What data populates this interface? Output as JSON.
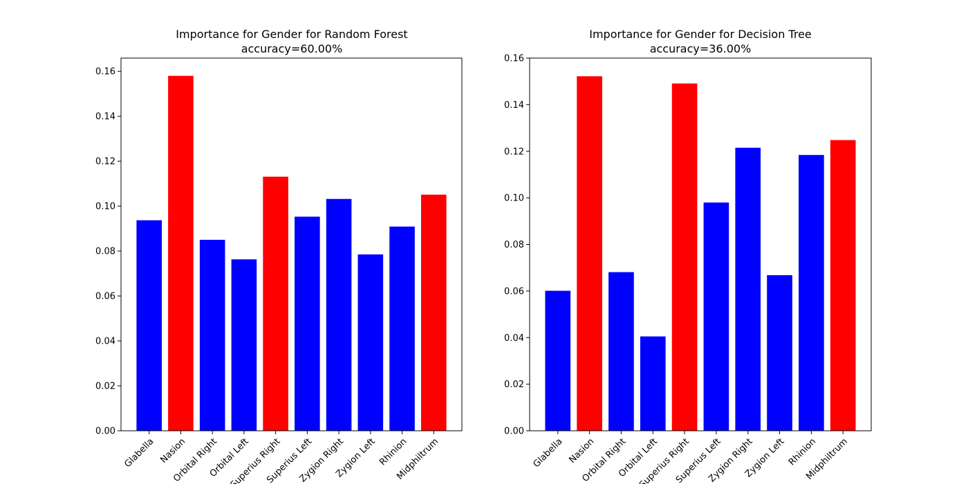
{
  "chart_data": [
    {
      "type": "bar",
      "title": "Importance for Gender for Random Forest",
      "subtitle": "accuracy=60.00%",
      "xlabel": "",
      "ylabel": "",
      "categories": [
        "Glabella",
        "Nasion",
        "Orbital Right",
        "Orbital Left",
        "Superius Right",
        "Superius Left",
        "Zygion Right",
        "Zygion Left",
        "Rhinion",
        "Midphiltrum"
      ],
      "values": [
        0.0937,
        0.158,
        0.085,
        0.0763,
        0.1131,
        0.0953,
        0.1032,
        0.0785,
        0.0909,
        0.1051
      ],
      "bar_colors": [
        "#0000ff",
        "#ff0000",
        "#0000ff",
        "#0000ff",
        "#ff0000",
        "#0000ff",
        "#0000ff",
        "#0000ff",
        "#0000ff",
        "#ff0000"
      ],
      "ylim": [
        0,
        0.1659
      ],
      "yticks": [
        0.0,
        0.02,
        0.04,
        0.06,
        0.08,
        0.1,
        0.12,
        0.14,
        0.16
      ],
      "ytick_labels": [
        "0.00",
        "0.02",
        "0.04",
        "0.06",
        "0.08",
        "0.10",
        "0.12",
        "0.14",
        "0.16"
      ],
      "grid": false,
      "legend": "none"
    },
    {
      "type": "bar",
      "title": "Importance for Gender for Decision Tree",
      "subtitle": "accuracy=36.00%",
      "xlabel": "",
      "ylabel": "",
      "categories": [
        "Glabella",
        "Nasion",
        "Orbital Right",
        "Orbital Left",
        "Superius Right",
        "Superius Left",
        "Zygion Right",
        "Zygion Left",
        "Rhinion",
        "Midphiltrum"
      ],
      "values": [
        0.0601,
        0.1522,
        0.0681,
        0.0405,
        0.1491,
        0.098,
        0.1215,
        0.0668,
        0.1184,
        0.1248
      ],
      "bar_colors": [
        "#0000ff",
        "#ff0000",
        "#0000ff",
        "#0000ff",
        "#ff0000",
        "#0000ff",
        "#0000ff",
        "#0000ff",
        "#0000ff",
        "#ff0000"
      ],
      "ylim": [
        0,
        0.16
      ],
      "yticks": [
        0.0,
        0.02,
        0.04,
        0.06,
        0.08,
        0.1,
        0.12,
        0.14,
        0.16
      ],
      "ytick_labels": [
        "0.00",
        "0.02",
        "0.04",
        "0.06",
        "0.08",
        "0.10",
        "0.12",
        "0.14",
        "0.16"
      ],
      "grid": false,
      "legend": "none"
    }
  ]
}
